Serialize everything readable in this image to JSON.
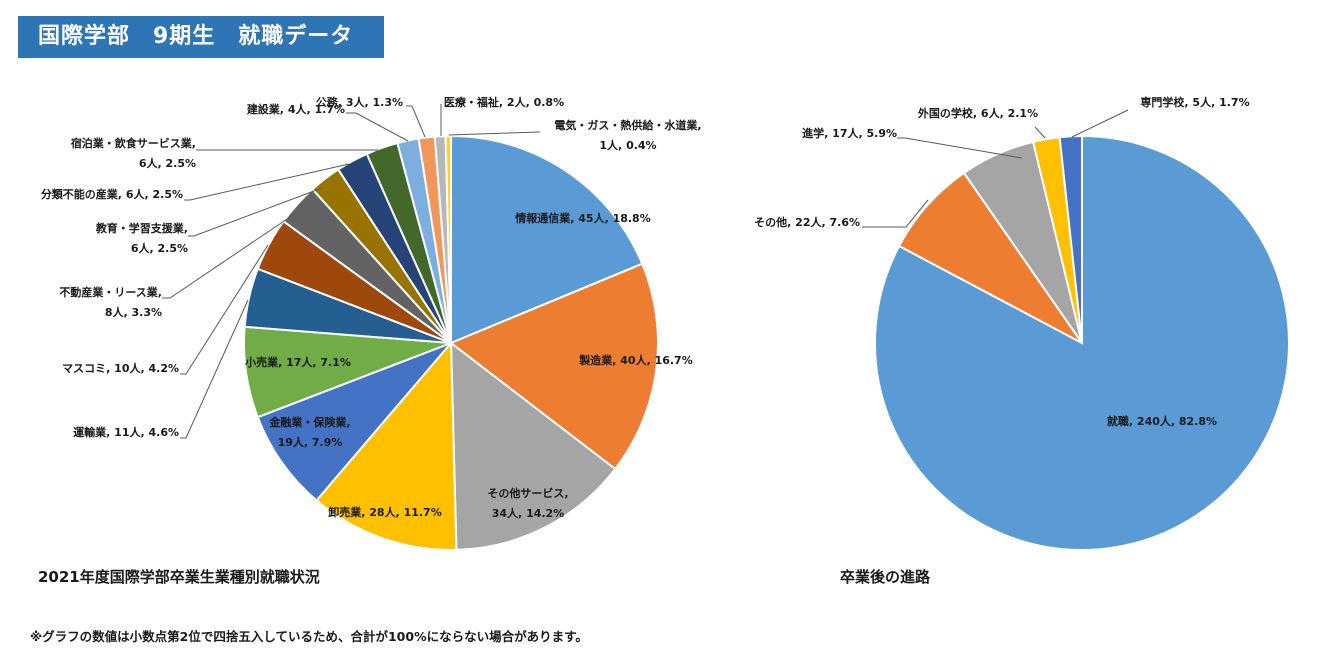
{
  "header": {
    "title": "国際学部　9期生　就職データ"
  },
  "captions": {
    "left": "2021年度国際学部卒業生業種別就職状況",
    "right": "卒業後の進路"
  },
  "footnote": "※グラフの数値は小数点第2位で四捨五入しているため、合計が100%にならない場合があります。",
  "chart_data": [
    {
      "type": "pie",
      "title": "2021年度国際学部卒業生業種別就職状況",
      "start_angle_deg": 0,
      "direction": "clockwise",
      "slices": [
        {
          "lines": [
            "情報通信業, 45人, 18.8%"
          ],
          "value": 45,
          "percent": 18.8,
          "color": "#5b9bd5"
        },
        {
          "lines": [
            "製造業, 40人, 16.7%"
          ],
          "value": 40,
          "percent": 16.7,
          "color": "#ed7d31"
        },
        {
          "lines": [
            "その他サービス,",
            "34人, 14.2%"
          ],
          "value": 34,
          "percent": 14.2,
          "color": "#a5a5a5"
        },
        {
          "lines": [
            "卸売業, 28人, 11.7%"
          ],
          "value": 28,
          "percent": 11.7,
          "color": "#ffc000"
        },
        {
          "lines": [
            "金融業・保険業,",
            "19人, 7.9%"
          ],
          "value": 19,
          "percent": 7.9,
          "color": "#4472c4"
        },
        {
          "lines": [
            "小売業, 17人, 7.1%"
          ],
          "value": 17,
          "percent": 7.1,
          "color": "#70ad47"
        },
        {
          "lines": [
            "運輸業, 11人, 4.6%"
          ],
          "value": 11,
          "percent": 4.6,
          "color": "#255e91"
        },
        {
          "lines": [
            "マスコミ, 10人, 4.2%"
          ],
          "value": 10,
          "percent": 4.2,
          "color": "#9e480e"
        },
        {
          "lines": [
            "不動産業・リース業,",
            "8人, 3.3%"
          ],
          "value": 8,
          "percent": 3.3,
          "color": "#636363"
        },
        {
          "lines": [
            "教育・学習支援業,",
            "6人, 2.5%"
          ],
          "value": 6,
          "percent": 2.5,
          "color": "#997300"
        },
        {
          "lines": [
            "分類不能の産業, 6人, 2.5%"
          ],
          "value": 6,
          "percent": 2.5,
          "color": "#264478"
        },
        {
          "lines": [
            "宿泊業・飲食サービス業,",
            "6人, 2.5%"
          ],
          "value": 6,
          "percent": 2.5,
          "color": "#43682b"
        },
        {
          "lines": [
            "建設業, 4人, 1.7%"
          ],
          "value": 4,
          "percent": 1.7,
          "color": "#7cafdd"
        },
        {
          "lines": [
            "公務, 3人, 1.3%"
          ],
          "value": 3,
          "percent": 1.3,
          "color": "#f1975a"
        },
        {
          "lines": [
            "医療・福祉, 2人, 0.8%"
          ],
          "value": 2,
          "percent": 0.8,
          "color": "#b7b7b7"
        },
        {
          "lines": [
            "電気・ガス・熱供給・水道業,",
            "1人, 0.4%"
          ],
          "value": 1,
          "percent": 0.4,
          "color": "#ffcd33"
        }
      ]
    },
    {
      "type": "pie",
      "title": "卒業後の進路",
      "start_angle_deg": 0,
      "direction": "clockwise",
      "slices": [
        {
          "lines": [
            "就職, 240人, 82.8%"
          ],
          "value": 240,
          "percent": 82.8,
          "color": "#5b9bd5"
        },
        {
          "lines": [
            "その他, 22人, 7.6%"
          ],
          "value": 22,
          "percent": 7.6,
          "color": "#ed7d31"
        },
        {
          "lines": [
            "進学, 17人, 5.9%"
          ],
          "value": 17,
          "percent": 5.9,
          "color": "#a5a5a5"
        },
        {
          "lines": [
            "外国の学校, 6人, 2.1%"
          ],
          "value": 6,
          "percent": 2.1,
          "color": "#ffc000"
        },
        {
          "lines": [
            "専門学校, 5人, 1.7%"
          ],
          "value": 5,
          "percent": 1.7,
          "color": "#4472c4"
        }
      ]
    }
  ]
}
